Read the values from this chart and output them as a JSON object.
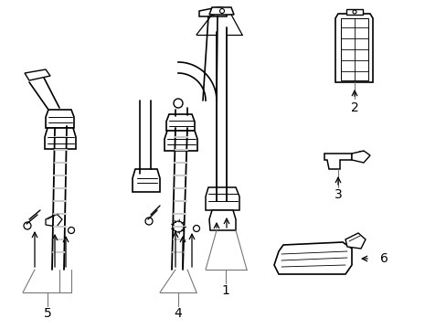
{
  "background_color": "#ffffff",
  "line_color": "#000000",
  "gray_color": "#777777",
  "label_1": "1",
  "label_2": "2",
  "label_3": "3",
  "label_4": "4",
  "label_5": "5",
  "label_6": "6",
  "figsize": [
    4.89,
    3.6
  ],
  "dpi": 100,
  "xlim": [
    0,
    489
  ],
  "ylim": [
    0,
    360
  ]
}
